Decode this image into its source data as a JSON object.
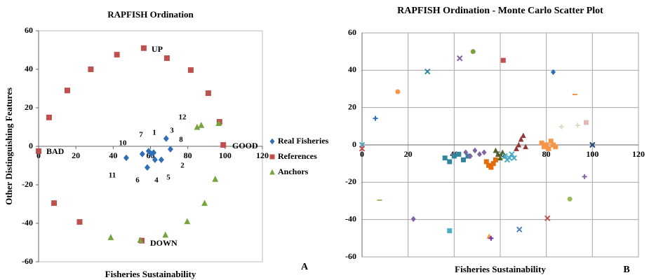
{
  "chart_data": [
    {
      "type": "scatter",
      "title": "RAPFISH Ordination",
      "x_label": "Fisheries Sustainability",
      "y_label": "Other Distinguishing Features",
      "xlim": [
        0,
        120
      ],
      "xticks": [
        0,
        20,
        40,
        60,
        80,
        100,
        120
      ],
      "ylim": [
        -60,
        60
      ],
      "yticks": [
        60,
        40,
        20,
        0,
        -20,
        -40,
        -60
      ],
      "grid": false,
      "legend": "right",
      "panel_label": "A",
      "series": [
        {
          "name": "Real Fisheries",
          "color": "#2e6fb7",
          "marker": "diamond",
          "x": [
            68.4,
            70.7,
            65.8,
            62.4,
            60.5,
            59,
            61.7,
            55.6,
            47,
            58.3
          ],
          "values": [
            4,
            -1.5,
            -7,
            -7,
            -4,
            -2.5,
            -3.3,
            -4,
            -6,
            -11
          ]
        },
        {
          "name": "References",
          "color": "#c0504d",
          "marker": "square",
          "x": [
            0,
            5.6,
            15.4,
            28,
            42,
            56.4,
            68.8,
            81.6,
            91,
            97,
            99,
            8.3,
            22,
            55.3
          ],
          "values": [
            -2.5,
            15,
            29,
            40,
            47.6,
            51,
            45.8,
            39.6,
            27.6,
            12.7,
            0.7,
            -29.5,
            -39.3,
            -49
          ]
        },
        {
          "name": "Anchors",
          "color": "#77a33c",
          "marker": "triangle",
          "x": [
            85,
            87.2,
            96.6,
            94.7,
            89,
            79.7,
            68,
            54.5,
            38.7
          ],
          "values": [
            10,
            11,
            12,
            -17,
            -29.5,
            -39,
            -46,
            -48.7,
            -47.3
          ]
        }
      ],
      "annotations": [
        "UP",
        "DOWN",
        "GOOD",
        "BAD",
        "12",
        "3",
        "1",
        "7",
        "8",
        "10",
        "11",
        "6",
        "4",
        "5",
        "2"
      ]
    },
    {
      "type": "scatter",
      "title": "RAPFISH Ordination - Monte Carlo Scatter Plot",
      "x_label": "Fisheries Sustainability",
      "xlim": [
        0,
        120
      ],
      "xticks": [
        0,
        20,
        40,
        60,
        80,
        100,
        120
      ],
      "ylim": [
        -60,
        60
      ],
      "yticks": [
        60,
        40,
        20,
        0,
        -20,
        -40,
        -60
      ],
      "grid": true,
      "panel_label": "B",
      "series": [
        {
          "color": "#4bacc6",
          "marker": "x",
          "x": [
            0
          ],
          "values": [
            0
          ]
        },
        {
          "color": "#c0504d",
          "marker": "x",
          "x": [
            0
          ],
          "values": [
            -2
          ]
        },
        {
          "color": "#2e6fb7",
          "marker": "plus",
          "x": [
            5.8
          ],
          "values": [
            14.2
          ]
        },
        {
          "color": "#f79646",
          "marker": "circle",
          "x": [
            15.5
          ],
          "values": [
            28.5
          ]
        },
        {
          "color": "#31859c",
          "marker": "x",
          "x": [
            28.4
          ],
          "values": [
            39.3
          ]
        },
        {
          "color": "#8064a2",
          "marker": "x",
          "x": [
            42.4
          ],
          "values": [
            46.4
          ]
        },
        {
          "color": "#77a33c",
          "marker": "circle",
          "x": [
            48.2
          ],
          "values": [
            50
          ]
        },
        {
          "color": "#c0504d",
          "marker": "square",
          "x": [
            61.3
          ],
          "values": [
            45.3
          ]
        },
        {
          "color": "#2e6fb7",
          "marker": "diamond",
          "x": [
            83
          ],
          "values": [
            39
          ]
        },
        {
          "color": "#f79646",
          "marker": "dash",
          "x": [
            92.4
          ],
          "values": [
            27
          ]
        },
        {
          "color": "#ddd9c3",
          "marker": "plus",
          "x": [
            93.6,
            86.6
          ],
          "values": [
            10.5,
            9.7
          ]
        },
        {
          "color": "#e6b9b8",
          "marker": "square",
          "x": [
            97.3
          ],
          "values": [
            12
          ]
        },
        {
          "color": "#1f497d",
          "marker": "x",
          "x": [
            100
          ],
          "values": [
            0
          ]
        },
        {
          "color": "#8064a2",
          "marker": "plus",
          "x": [
            96.6
          ],
          "values": [
            -17
          ]
        },
        {
          "color": "#9bbb59",
          "marker": "circle",
          "x": [
            90.2
          ],
          "values": [
            -29
          ]
        },
        {
          "color": "#c0504d",
          "marker": "x",
          "x": [
            80.5
          ],
          "values": [
            -39.3
          ]
        },
        {
          "color": "#4f81bd",
          "marker": "x",
          "x": [
            68.3
          ],
          "values": [
            -45.3
          ]
        },
        {
          "color": "#f79646",
          "marker": "triangle",
          "x": [
            55.2
          ],
          "values": [
            -49
          ]
        },
        {
          "color": "#7030a0",
          "marker": "plus",
          "x": [
            56
          ],
          "values": [
            -50
          ]
        },
        {
          "color": "#4bacc6",
          "marker": "square",
          "x": [
            38
          ],
          "values": [
            -46
          ]
        },
        {
          "color": "#8064a2",
          "marker": "diamond",
          "x": [
            22.3
          ],
          "values": [
            -39.7
          ]
        },
        {
          "color": "#9bbb59",
          "marker": "dash",
          "x": [
            7.6
          ],
          "values": [
            -29.6
          ]
        },
        {
          "color": "#31859c",
          "marker": "square",
          "x": [
            36,
            38,
            40,
            42,
            44,
            46
          ],
          "values": [
            -7,
            -9,
            -6,
            -5,
            -8,
            -6
          ]
        },
        {
          "color": "#8064a2",
          "marker": "diamond",
          "x": [
            45,
            47,
            49,
            51,
            53
          ],
          "values": [
            -4,
            -6,
            -3,
            -5,
            -4
          ]
        },
        {
          "color": "#e46c0a",
          "marker": "square",
          "x": [
            54,
            55,
            56,
            57,
            58
          ],
          "values": [
            -9,
            -11,
            -12,
            -10,
            -8
          ]
        },
        {
          "color": "#4f6228",
          "marker": "triangle",
          "x": [
            58,
            59,
            60,
            61,
            62
          ],
          "values": [
            -3,
            -5,
            -7,
            -4,
            -6
          ]
        },
        {
          "color": "#4bacc6",
          "marker": "x",
          "x": [
            62,
            63,
            64,
            65,
            66
          ],
          "values": [
            -6,
            -8,
            -7,
            -5,
            -7
          ]
        },
        {
          "color": "#953735",
          "marker": "triangle",
          "x": [
            67,
            68,
            69,
            70,
            71
          ],
          "values": [
            -2,
            0,
            3,
            5,
            -1
          ]
        },
        {
          "color": "#f79646",
          "marker": "square",
          "x": [
            78,
            79,
            80,
            81,
            82,
            83,
            84
          ],
          "values": [
            1,
            -1,
            0,
            -2,
            2,
            0,
            -1
          ]
        }
      ]
    }
  ]
}
